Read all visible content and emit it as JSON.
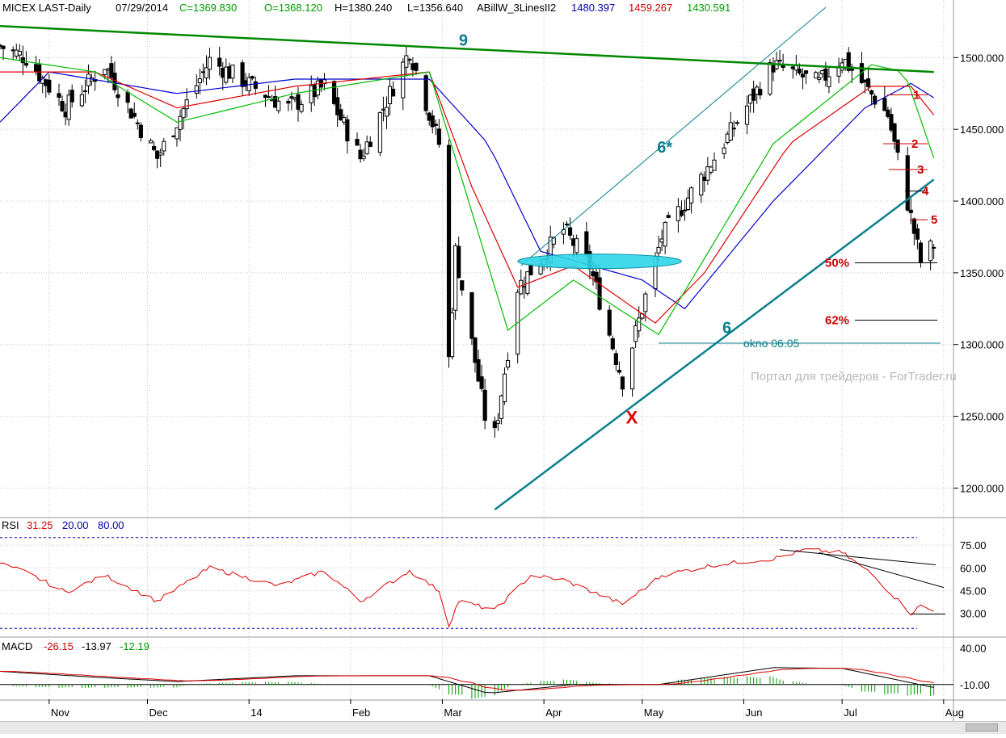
{
  "header": {
    "symbol": "MICEX LAST-Daily",
    "date": "07/29/2014",
    "close": "C=1369.830",
    "open": "O=1368.120",
    "high": "H=1380.240",
    "low": "L=1356.640",
    "indicator_name": "ABillW_3LinesII2",
    "line_blue": "1480.397",
    "line_red": "1459.267",
    "line_green": "1430.591"
  },
  "colors": {
    "up": "#000000",
    "down": "#000000",
    "ma_blue": "#0000cc",
    "ma_red": "#dd0000",
    "ma_green": "#00bb00",
    "trend9": "#008800",
    "teal": "#0a7f8c",
    "ellipse": "#2ed6e8",
    "rsi": "#dd0000",
    "macd": "#000000",
    "signal": "#dd0000",
    "hist": "#009900"
  },
  "chart_data": [
    {
      "type": "candlestick",
      "title": "MICEX LAST-Daily",
      "x_ticks": [
        "Nov",
        "Dec",
        "14",
        "Feb",
        "Mar",
        "Apr",
        "May",
        "Jun",
        "Jul",
        "Aug"
      ],
      "x_range": [
        "2013-10-17",
        "2014-08-04"
      ],
      "ylim": [
        1180,
        1530
      ],
      "y_ticks": [
        "1200.000",
        "1250.000",
        "1300.000",
        "1350.000",
        "1400.000",
        "1450.000",
        "1500.000"
      ],
      "grid": true,
      "key_points": [
        {
          "date": "2013-10-17",
          "close": 1508
        },
        {
          "date": "2013-10-25",
          "close": 1500
        },
        {
          "date": "2013-11-06",
          "close": 1465
        },
        {
          "date": "2013-11-18",
          "close": 1495
        },
        {
          "date": "2013-12-04",
          "close": 1430
        },
        {
          "date": "2013-12-20",
          "close": 1498
        },
        {
          "date": "2014-01-13",
          "close": 1465
        },
        {
          "date": "2014-01-24",
          "close": 1480
        },
        {
          "date": "2014-02-04",
          "close": 1430
        },
        {
          "date": "2014-02-19",
          "close": 1505
        },
        {
          "date": "2014-02-28",
          "close": 1440
        },
        {
          "date": "2014-03-03",
          "close": 1290
        },
        {
          "date": "2014-03-05",
          "close": 1365
        },
        {
          "date": "2014-03-14",
          "close": 1250
        },
        {
          "date": "2014-03-17",
          "close": 1237
        },
        {
          "date": "2014-03-24",
          "close": 1340
        },
        {
          "date": "2014-04-07",
          "close": 1380
        },
        {
          "date": "2014-04-15",
          "close": 1355
        },
        {
          "date": "2014-04-25",
          "close": 1275
        },
        {
          "date": "2014-05-07",
          "close": 1375
        },
        {
          "date": "2014-05-23",
          "close": 1430
        },
        {
          "date": "2014-06-10",
          "close": 1495
        },
        {
          "date": "2014-06-24",
          "close": 1482
        },
        {
          "date": "2014-07-01",
          "close": 1500
        },
        {
          "date": "2014-07-15",
          "close": 1460
        },
        {
          "date": "2014-07-25",
          "close": 1358
        },
        {
          "date": "2014-07-29",
          "close": 1369.83
        }
      ],
      "overlays": [
        {
          "name": "1480.397",
          "color": "blue",
          "key_points": [
            {
              "date": "2013-10-17",
              "close": 1455
            },
            {
              "date": "2013-11-01",
              "close": 1490
            },
            {
              "date": "2013-12-10",
              "close": 1475
            },
            {
              "date": "2014-01-15",
              "close": 1485
            },
            {
              "date": "2014-02-25",
              "close": 1485
            },
            {
              "date": "2014-03-15",
              "close": 1440
            },
            {
              "date": "2014-03-31",
              "close": 1365
            },
            {
              "date": "2014-05-01",
              "close": 1345
            },
            {
              "date": "2014-05-14",
              "close": 1325
            },
            {
              "date": "2014-06-10",
              "close": 1400
            },
            {
              "date": "2014-07-08",
              "close": 1465
            },
            {
              "date": "2014-07-22",
              "close": 1482
            },
            {
              "date": "2014-07-29",
              "close": 1472
            }
          ]
        },
        {
          "name": "1459.267",
          "color": "red",
          "key_points": [
            {
              "date": "2013-10-17",
              "close": 1490
            },
            {
              "date": "2013-11-15",
              "close": 1490
            },
            {
              "date": "2013-12-10",
              "close": 1465
            },
            {
              "date": "2014-01-15",
              "close": 1480
            },
            {
              "date": "2014-02-25",
              "close": 1490
            },
            {
              "date": "2014-03-10",
              "close": 1410
            },
            {
              "date": "2014-03-24",
              "close": 1340
            },
            {
              "date": "2014-04-10",
              "close": 1355
            },
            {
              "date": "2014-05-05",
              "close": 1315
            },
            {
              "date": "2014-05-20",
              "close": 1350
            },
            {
              "date": "2014-06-15",
              "close": 1440
            },
            {
              "date": "2014-07-10",
              "close": 1480
            },
            {
              "date": "2014-07-22",
              "close": 1480
            },
            {
              "date": "2014-07-29",
              "close": 1460
            }
          ]
        },
        {
          "name": "1430.591",
          "color": "green",
          "key_points": [
            {
              "date": "2013-10-17",
              "close": 1500
            },
            {
              "date": "2013-11-15",
              "close": 1490
            },
            {
              "date": "2013-12-10",
              "close": 1455
            },
            {
              "date": "2014-01-15",
              "close": 1475
            },
            {
              "date": "2014-02-25",
              "close": 1490
            },
            {
              "date": "2014-03-05",
              "close": 1430
            },
            {
              "date": "2014-03-21",
              "close": 1310
            },
            {
              "date": "2014-04-10",
              "close": 1345
            },
            {
              "date": "2014-05-06",
              "close": 1307
            },
            {
              "date": "2014-05-20",
              "close": 1360
            },
            {
              "date": "2014-06-10",
              "close": 1440
            },
            {
              "date": "2014-07-10",
              "close": 1495
            },
            {
              "date": "2014-07-20",
              "close": 1490
            },
            {
              "date": "2014-07-29",
              "close": 1430
            }
          ]
        }
      ],
      "annotations": {
        "trendline_9": {
          "label": "9",
          "from": {
            "date": "2013-10-17",
            "close": 1522
          },
          "to": {
            "date": "2014-07-29",
            "close": 1490
          }
        },
        "channel_6": {
          "label": "6",
          "from": {
            "date": "2014-03-17",
            "close": 1185
          },
          "to": {
            "date": "2014-07-29",
            "close": 1415
          }
        },
        "channel_6_star": {
          "label": "6*",
          "from": {
            "date": "2014-03-25",
            "close": 1355
          },
          "to": {
            "date": "2014-06-26",
            "close": 1535
          }
        },
        "x_marker": {
          "label": "X",
          "date": "2014-04-28",
          "close": 1245
        },
        "ellipse_zone": {
          "from": "2014-03-24",
          "to": "2014-05-13",
          "close": 1358
        },
        "okno_line": {
          "label": "okno 06.05",
          "from": "2014-05-06",
          "to": "2014-07-31",
          "close": 1301
        },
        "fib_levels": [
          {
            "label": "50%",
            "close": 1357
          },
          {
            "label": "62%",
            "close": 1317
          }
        ],
        "numbered_levels": [
          {
            "label": "1",
            "close": 1474
          },
          {
            "label": "2",
            "close": 1440
          },
          {
            "label": "3",
            "close": 1422
          },
          {
            "label": "4",
            "close": 1407
          },
          {
            "label": "5",
            "close": 1387
          }
        ]
      },
      "watermark": "Портал для трейдеров - ForTrader.ru"
    },
    {
      "type": "line",
      "title": "RSI",
      "values_label": [
        "31.25",
        "20.00",
        "80.00"
      ],
      "ylim": [
        18,
        82
      ],
      "y_ticks": [
        "30.00",
        "45.00",
        "60.00",
        "75.00"
      ],
      "key_points": [
        {
          "date": "2013-10-17",
          "close": 63
        },
        {
          "date": "2013-10-25",
          "close": 57
        },
        {
          "date": "2013-11-06",
          "close": 44
        },
        {
          "date": "2013-11-18",
          "close": 55
        },
        {
          "date": "2013-12-04",
          "close": 38
        },
        {
          "date": "2013-12-20",
          "close": 60
        },
        {
          "date": "2014-01-10",
          "close": 48
        },
        {
          "date": "2014-01-24",
          "close": 58
        },
        {
          "date": "2014-02-04",
          "close": 38
        },
        {
          "date": "2014-02-19",
          "close": 58
        },
        {
          "date": "2014-02-28",
          "close": 45
        },
        {
          "date": "2014-03-03",
          "close": 22
        },
        {
          "date": "2014-03-06",
          "close": 38
        },
        {
          "date": "2014-03-17",
          "close": 32
        },
        {
          "date": "2014-03-28",
          "close": 55
        },
        {
          "date": "2014-04-07",
          "close": 52
        },
        {
          "date": "2014-04-25",
          "close": 36
        },
        {
          "date": "2014-05-07",
          "close": 55
        },
        {
          "date": "2014-05-23",
          "close": 62
        },
        {
          "date": "2014-06-10",
          "close": 66
        },
        {
          "date": "2014-06-20",
          "close": 72
        },
        {
          "date": "2014-07-01",
          "close": 70
        },
        {
          "date": "2014-07-10",
          "close": 56
        },
        {
          "date": "2014-07-22",
          "close": 30
        },
        {
          "date": "2014-07-25",
          "close": 35
        },
        {
          "date": "2014-07-29",
          "close": 31.25
        }
      ]
    },
    {
      "type": "line",
      "title": "MACD",
      "values_label": [
        "-26.15",
        "-13.97",
        "-12.19"
      ],
      "ylim": [
        -30,
        48
      ],
      "y_ticks": [
        "40.00",
        "-10.00"
      ],
      "key_points": [
        {
          "date": "2013-10-17",
          "close": 8
        },
        {
          "date": "2013-11-15",
          "close": 0
        },
        {
          "date": "2013-12-10",
          "close": -6
        },
        {
          "date": "2014-01-15",
          "close": 2
        },
        {
          "date": "2014-02-25",
          "close": 2
        },
        {
          "date": "2014-03-15",
          "close": -22
        },
        {
          "date": "2014-04-10",
          "close": -10
        },
        {
          "date": "2014-05-06",
          "close": -10
        },
        {
          "date": "2014-06-10",
          "close": 13
        },
        {
          "date": "2014-07-01",
          "close": 12
        },
        {
          "date": "2014-07-29",
          "close": -14
        }
      ]
    }
  ]
}
